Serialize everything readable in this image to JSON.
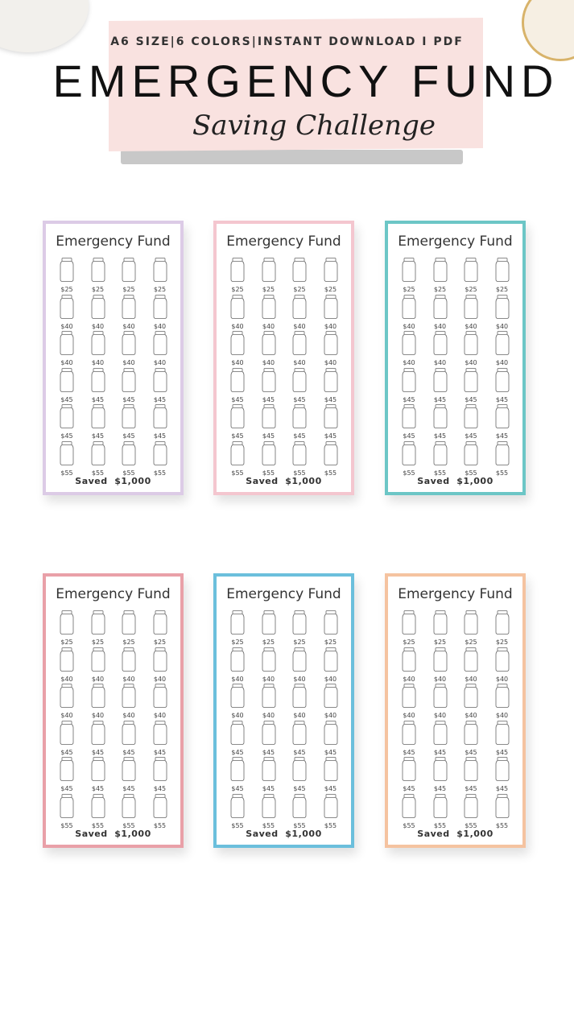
{
  "header": {
    "tagline": "A6 SIZE|6 COLORS|INSTANT DOWNLOAD I PDF",
    "title": "EMERGENCY FUND",
    "subtitle": "Saving Challenge"
  },
  "cards": [
    {
      "title": "Emergency Fund",
      "border_color": "#dccbe6",
      "rows": [
        [
          "$25",
          "$25",
          "$25",
          "$25"
        ],
        [
          "$40",
          "$40",
          "$40",
          "$40"
        ],
        [
          "$40",
          "$40",
          "$40",
          "$40"
        ],
        [
          "$45",
          "$45",
          "$45",
          "$45"
        ],
        [
          "$45",
          "$45",
          "$45",
          "$45"
        ],
        [
          "$55",
          "$55",
          "$55",
          "$55"
        ]
      ],
      "footer": "Saved  $1,000"
    },
    {
      "title": "Emergency Fund",
      "border_color": "#f4c6cf",
      "rows": [
        [
          "$25",
          "$25",
          "$25",
          "$25"
        ],
        [
          "$40",
          "$40",
          "$40",
          "$40"
        ],
        [
          "$40",
          "$40",
          "$40",
          "$40"
        ],
        [
          "$45",
          "$45",
          "$45",
          "$45"
        ],
        [
          "$45",
          "$45",
          "$45",
          "$45"
        ],
        [
          "$55",
          "$55",
          "$55",
          "$55"
        ]
      ],
      "footer": "Saved  $1,000"
    },
    {
      "title": "Emergency Fund",
      "border_color": "#6cc6c6",
      "rows": [
        [
          "$25",
          "$25",
          "$25",
          "$25"
        ],
        [
          "$40",
          "$40",
          "$40",
          "$40"
        ],
        [
          "$40",
          "$40",
          "$40",
          "$40"
        ],
        [
          "$45",
          "$45",
          "$45",
          "$45"
        ],
        [
          "$45",
          "$45",
          "$45",
          "$45"
        ],
        [
          "$55",
          "$55",
          "$55",
          "$55"
        ]
      ],
      "footer": "Saved  $1,000"
    },
    {
      "title": "Emergency Fund",
      "border_color": "#e9a0a8",
      "rows": [
        [
          "$25",
          "$25",
          "$25",
          "$25"
        ],
        [
          "$40",
          "$40",
          "$40",
          "$40"
        ],
        [
          "$40",
          "$40",
          "$40",
          "$40"
        ],
        [
          "$45",
          "$45",
          "$45",
          "$45"
        ],
        [
          "$45",
          "$45",
          "$45",
          "$45"
        ],
        [
          "$55",
          "$55",
          "$55",
          "$55"
        ]
      ],
      "footer": "Saved  $1,000"
    },
    {
      "title": "Emergency Fund",
      "border_color": "#6bbfdc",
      "rows": [
        [
          "$25",
          "$25",
          "$25",
          "$25"
        ],
        [
          "$40",
          "$40",
          "$40",
          "$40"
        ],
        [
          "$40",
          "$40",
          "$40",
          "$40"
        ],
        [
          "$45",
          "$45",
          "$45",
          "$45"
        ],
        [
          "$45",
          "$45",
          "$45",
          "$45"
        ],
        [
          "$55",
          "$55",
          "$55",
          "$55"
        ]
      ],
      "footer": "Saved  $1,000"
    },
    {
      "title": "Emergency Fund",
      "border_color": "#f5c3a0",
      "rows": [
        [
          "$25",
          "$25",
          "$25",
          "$25"
        ],
        [
          "$40",
          "$40",
          "$40",
          "$40"
        ],
        [
          "$40",
          "$40",
          "$40",
          "$40"
        ],
        [
          "$45",
          "$45",
          "$45",
          "$45"
        ],
        [
          "$45",
          "$45",
          "$45",
          "$45"
        ],
        [
          "$55",
          "$55",
          "$55",
          "$55"
        ]
      ],
      "footer": "Saved  $1,000"
    }
  ]
}
